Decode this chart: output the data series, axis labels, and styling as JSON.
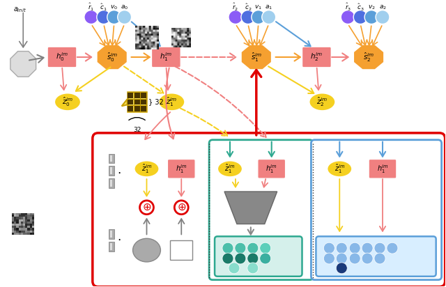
{
  "bg_color": "#ffffff",
  "orange_node": "#F5A030",
  "pink_node": "#F08080",
  "yellow_node": "#F5D020",
  "purple_c": "#8B5CF6",
  "blue_c": "#4F6FE0",
  "mblue_c": "#5B9FD9",
  "lblue_c": "#A0CFEE",
  "teal": "#2EA890",
  "red": "#E00000",
  "pink_arr": "#F08080",
  "orange_arr": "#F5A030",
  "yellow_dash": "#F5D020",
  "blue_arr": "#5B9FD9",
  "gray": "#808080",
  "dark_gray": "#555555",
  "grid_yellow": "#F5E060",
  "grid_border": "#C8A000",
  "grid_dark": "#4A3500"
}
